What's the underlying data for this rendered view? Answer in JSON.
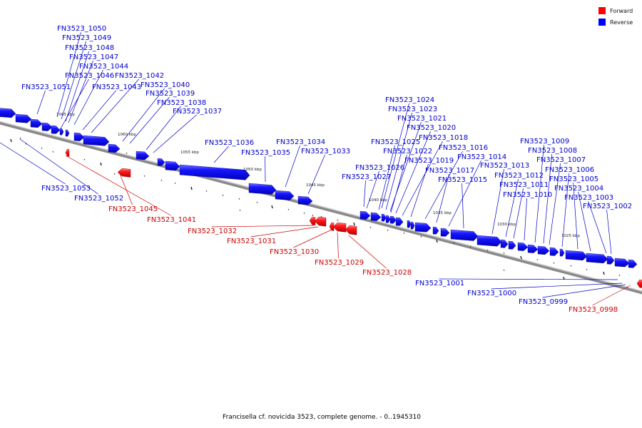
{
  "caption": "Francisella cf. novicida 3523, complete genome. - 0..1945310",
  "legend": [
    {
      "label": "Forward",
      "color": "#ff0000"
    },
    {
      "label": "Reverse",
      "color": "#0000ff"
    }
  ],
  "ticks": [
    "1065 kbp",
    "1060 kbp",
    "1055 kbp",
    "1050 kbp",
    "1045 kbp",
    "1040 kbp",
    "1035 kbp",
    "1030 kbp",
    "1025 kbp"
  ],
  "genes": [
    {
      "name": "FN3523_1053",
      "strand": "reverse"
    },
    {
      "name": "FN3523_1052",
      "strand": "reverse"
    },
    {
      "name": "FN3523_1051",
      "strand": "reverse"
    },
    {
      "name": "FN3523_1050",
      "strand": "reverse"
    },
    {
      "name": "FN3523_1049",
      "strand": "reverse"
    },
    {
      "name": "FN3523_1048",
      "strand": "reverse"
    },
    {
      "name": "FN3523_1047",
      "strand": "reverse"
    },
    {
      "name": "FN3523_1046",
      "strand": "reverse"
    },
    {
      "name": "FN3523_1045",
      "strand": "forward"
    },
    {
      "name": "FN3523_1044",
      "strand": "reverse"
    },
    {
      "name": "FN3523_1043",
      "strand": "reverse"
    },
    {
      "name": "FN3523_1042",
      "strand": "reverse"
    },
    {
      "name": "FN3523_1041",
      "strand": "forward"
    },
    {
      "name": "FN3523_1040",
      "strand": "reverse"
    },
    {
      "name": "FN3523_1039",
      "strand": "reverse"
    },
    {
      "name": "FN3523_1038",
      "strand": "reverse"
    },
    {
      "name": "FN3523_1037",
      "strand": "reverse"
    },
    {
      "name": "FN3523_1036",
      "strand": "reverse"
    },
    {
      "name": "FN3523_1035",
      "strand": "reverse"
    },
    {
      "name": "FN3523_1034",
      "strand": "reverse"
    },
    {
      "name": "FN3523_1033",
      "strand": "reverse"
    },
    {
      "name": "FN3523_1032",
      "strand": "forward"
    },
    {
      "name": "FN3523_1031",
      "strand": "forward"
    },
    {
      "name": "FN3523_1030",
      "strand": "forward"
    },
    {
      "name": "FN3523_1029",
      "strand": "forward"
    },
    {
      "name": "FN3523_1028",
      "strand": "forward"
    },
    {
      "name": "FN3523_1027",
      "strand": "reverse"
    },
    {
      "name": "FN3523_1026",
      "strand": "reverse"
    },
    {
      "name": "FN3523_1025",
      "strand": "reverse"
    },
    {
      "name": "FN3523_1024",
      "strand": "reverse"
    },
    {
      "name": "FN3523_1023",
      "strand": "reverse"
    },
    {
      "name": "FN3523_1022",
      "strand": "reverse"
    },
    {
      "name": "FN3523_1021",
      "strand": "reverse"
    },
    {
      "name": "FN3523_1020",
      "strand": "reverse"
    },
    {
      "name": "FN3523_1019",
      "strand": "reverse"
    },
    {
      "name": "FN3523_1018",
      "strand": "reverse"
    },
    {
      "name": "FN3523_1017",
      "strand": "reverse"
    },
    {
      "name": "FN3523_1016",
      "strand": "reverse"
    },
    {
      "name": "FN3523_1015",
      "strand": "reverse"
    },
    {
      "name": "FN3523_1014",
      "strand": "reverse"
    },
    {
      "name": "FN3523_1013",
      "strand": "reverse"
    },
    {
      "name": "FN3523_1012",
      "strand": "reverse"
    },
    {
      "name": "FN3523_1011",
      "strand": "reverse"
    },
    {
      "name": "FN3523_1010",
      "strand": "reverse"
    },
    {
      "name": "FN3523_1009",
      "strand": "reverse"
    },
    {
      "name": "FN3523_1008",
      "strand": "reverse"
    },
    {
      "name": "FN3523_1007",
      "strand": "reverse"
    },
    {
      "name": "FN3523_1006",
      "strand": "reverse"
    },
    {
      "name": "FN3523_1005",
      "strand": "reverse"
    },
    {
      "name": "FN3523_1004",
      "strand": "reverse"
    },
    {
      "name": "FN3523_1003",
      "strand": "reverse"
    },
    {
      "name": "FN3523_1002",
      "strand": "reverse"
    },
    {
      "name": "FN3523_1001",
      "strand": "reverse"
    },
    {
      "name": "FN3523_1000",
      "strand": "reverse"
    },
    {
      "name": "FN3523_0999",
      "strand": "reverse"
    },
    {
      "name": "FN3523_0998",
      "strand": "forward"
    }
  ]
}
